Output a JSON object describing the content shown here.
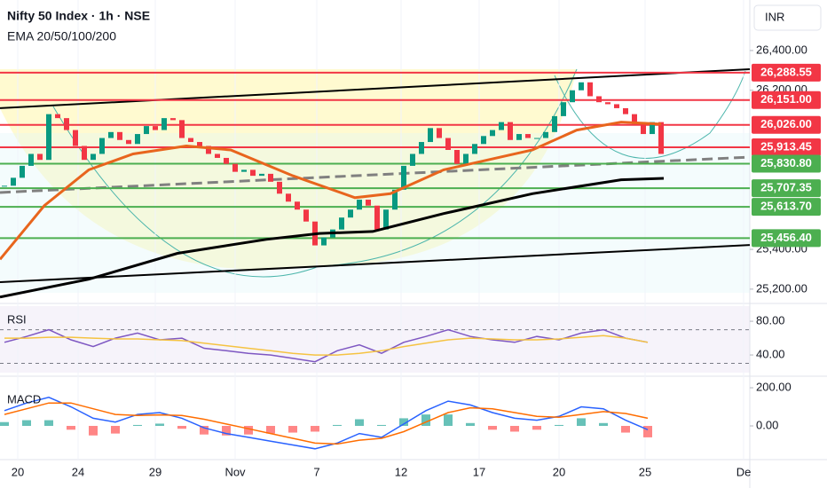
{
  "chart_data": [
    {
      "type": "candlestick",
      "title": "Nifty 50 Index · 1h · NSE",
      "subtitle": "EMA 20/50/100/200",
      "currency": "INR",
      "up_color": "#089981",
      "down_color": "#f23645",
      "xlim": [
        0,
        84.5
      ],
      "ylim": [
        25137,
        26654
      ],
      "yticks": [
        {
          "value": 26400,
          "label": "26,400.00"
        },
        {
          "value": 26200,
          "label": "26,200.00"
        },
        {
          "value": 25400,
          "label": "25,400.00"
        },
        {
          "value": 25200,
          "label": "25,200.00"
        }
      ],
      "x": [
        0.5,
        1.5,
        2.5,
        3.5,
        4.5,
        5.5,
        6.5,
        7.5,
        8.5,
        9.5,
        10.5,
        11.5,
        12.5,
        13.5,
        14.5,
        15.5,
        16.5,
        17.5,
        18.5,
        19.5,
        20.5,
        21.5,
        22.5,
        23.5,
        24.5,
        25.5,
        26.5,
        27.5,
        28.5,
        29.5,
        30.5,
        31.5,
        32.5,
        33.5,
        34.5,
        35.5,
        36.5,
        37.5,
        38.5,
        39.5,
        40.5,
        41.5,
        42.5,
        43.5,
        44.5,
        45.5,
        46.5,
        47.5,
        48.5,
        49.5,
        50.5,
        51.5,
        52.5,
        53.5,
        54.5,
        55.5,
        56.5,
        57.5,
        58.5,
        59.5,
        60.5,
        61.5,
        62.5,
        63.5,
        64.5,
        65.5,
        66.5,
        67.5,
        68.5,
        69.5,
        70.5,
        71.5,
        72.5,
        73.5,
        74.5
      ],
      "close": [
        25720,
        25760,
        25820,
        25880,
        25850,
        26080,
        26060,
        26000,
        25920,
        25850,
        25880,
        25960,
        25990,
        25950,
        25930,
        25980,
        26020,
        26000,
        26060,
        26050,
        25960,
        25940,
        25920,
        25880,
        25860,
        25830,
        25790,
        25800,
        25770,
        25780,
        25740,
        25680,
        25640,
        25600,
        25540,
        25420,
        25460,
        25500,
        25560,
        25600,
        25650,
        25620,
        25500,
        25600,
        25700,
        25820,
        25880,
        25940,
        26010,
        25960,
        25900,
        25830,
        25880,
        25930,
        25970,
        26000,
        26040,
        25950,
        25980,
        25960,
        25960,
        25990,
        26070,
        26140,
        26200,
        26240,
        26170,
        26140,
        26130,
        26110,
        26080,
        26030,
        25980,
        26040,
        25880
      ],
      "lines": [
        {
          "color": "#e8651d",
          "x": [
            0,
            5,
            10,
            15,
            21,
            26,
            33,
            40,
            44,
            50,
            55,
            60,
            65,
            70,
            74.5
          ],
          "values": [
            25350,
            25620,
            25800,
            25880,
            25920,
            25900,
            25770,
            25660,
            25680,
            25800,
            25850,
            25900,
            26000,
            26040,
            26030
          ]
        },
        {
          "color": "#000000",
          "x": [
            0,
            10,
            20,
            30,
            36,
            42,
            50,
            60,
            70,
            74.8
          ],
          "values": [
            25160,
            25250,
            25380,
            25450,
            25480,
            25490,
            25580,
            25680,
            25750,
            25757
          ]
        }
      ],
      "trendlines": [
        {
          "color": "#000000",
          "dash": false,
          "values": [
            26110,
            26306
          ]
        },
        {
          "color": "#000000",
          "dash": false,
          "values": [
            25235,
            25422
          ]
        },
        {
          "color": "#808080",
          "dash": true,
          "values": [
            25686,
            25864
          ]
        }
      ],
      "levels": [
        {
          "value": 26288.55,
          "label": "26,288.55",
          "color": "#f23645"
        },
        {
          "value": 26151.0,
          "label": "26,151.00",
          "color": "#f23645"
        },
        {
          "value": 26026.0,
          "label": "26,026.00",
          "color": "#f23645"
        },
        {
          "value": 25913.45,
          "label": "25,913.45",
          "color": "#f23645"
        },
        {
          "value": 25830.8,
          "label": "25,830.80",
          "color": "#4caf50"
        },
        {
          "value": 25707.35,
          "label": "25,707.35",
          "color": "#4caf50"
        },
        {
          "value": 25613.7,
          "label": "25,613.70",
          "color": "#4caf50"
        },
        {
          "value": 25456.4,
          "label": "25,456.40",
          "color": "#4caf50"
        }
      ]
    },
    {
      "type": "line",
      "title": "RSI",
      "xlim": [
        0,
        84.5
      ],
      "ylim": [
        19,
        98
      ],
      "yticks": [
        {
          "value": 80,
          "label": "80.00"
        },
        {
          "value": 40,
          "label": "40.00"
        }
      ],
      "bands": [
        70,
        30
      ],
      "x": [
        0.5,
        3,
        5.5,
        8,
        10.5,
        13,
        15.5,
        18,
        20.5,
        23,
        25.5,
        28,
        30.5,
        33,
        35.5,
        38,
        40.5,
        43,
        45.5,
        48,
        50.5,
        53,
        55.5,
        58,
        60.5,
        63,
        65.5,
        68,
        70.5,
        73
      ],
      "series": [
        {
          "color": "#7e57c2",
          "values": [
            55,
            62,
            70,
            58,
            50,
            60,
            66,
            58,
            60,
            48,
            45,
            42,
            40,
            36,
            32,
            45,
            52,
            42,
            55,
            62,
            70,
            62,
            58,
            55,
            62,
            58,
            66,
            70,
            60,
            55
          ]
        },
        {
          "color": "#f5c342",
          "values": [
            60,
            60,
            61,
            61,
            60,
            59,
            59,
            58,
            57,
            54,
            51,
            48,
            45,
            42,
            40,
            40,
            42,
            45,
            50,
            54,
            58,
            60,
            59,
            58,
            58,
            59,
            61,
            63,
            60,
            55
          ]
        }
      ]
    },
    {
      "type": "line",
      "title": "MACD",
      "xlim": [
        0,
        84.5
      ],
      "ylim": [
        -186,
        242
      ],
      "yticks": [
        {
          "value": 200,
          "label": "200.00"
        },
        {
          "value": 0,
          "label": "0.00"
        }
      ],
      "x": [
        0.5,
        3,
        5.5,
        8,
        10.5,
        13,
        15.5,
        18,
        20.5,
        23,
        25.5,
        28,
        30.5,
        33,
        35.5,
        38,
        40.5,
        43,
        45.5,
        48,
        50.5,
        53,
        55.5,
        58,
        60.5,
        63,
        65.5,
        68,
        70.5,
        73
      ],
      "series": [
        {
          "color": "#2962ff",
          "values": [
            80,
            120,
            150,
            100,
            40,
            20,
            60,
            70,
            40,
            -10,
            -40,
            -60,
            -80,
            -100,
            -120,
            -90,
            -40,
            -60,
            10,
            80,
            130,
            110,
            70,
            40,
            30,
            50,
            100,
            90,
            30,
            -20
          ]
        },
        {
          "color": "#ff6d00",
          "values": [
            60,
            90,
            120,
            120,
            90,
            60,
            55,
            58,
            55,
            35,
            10,
            -15,
            -40,
            -65,
            -90,
            -95,
            -75,
            -65,
            -30,
            20,
            70,
            95,
            90,
            70,
            50,
            45,
            60,
            75,
            65,
            40
          ]
        }
      ],
      "histogram": [
        20,
        30,
        30,
        -20,
        -50,
        -40,
        5,
        12,
        -15,
        -45,
        -50,
        -45,
        -40,
        -35,
        -30,
        5,
        35,
        5,
        40,
        60,
        60,
        15,
        -20,
        -30,
        -20,
        5,
        40,
        15,
        -35,
        -60
      ],
      "histogram_up_color": "#26a69a",
      "histogram_down_color": "#ff5252",
      "xticks": [
        {
          "value": 2,
          "label": "20"
        },
        {
          "value": 8.8,
          "label": "24"
        },
        {
          "value": 17.5,
          "label": "29"
        },
        {
          "value": 26.5,
          "label": "Nov"
        },
        {
          "value": 35.7,
          "label": "7"
        },
        {
          "value": 45.2,
          "label": "12"
        },
        {
          "value": 54,
          "label": "17"
        },
        {
          "value": 63,
          "label": "20"
        },
        {
          "value": 72.7,
          "label": "25"
        },
        {
          "value": 83.8,
          "label": "De"
        }
      ]
    }
  ]
}
